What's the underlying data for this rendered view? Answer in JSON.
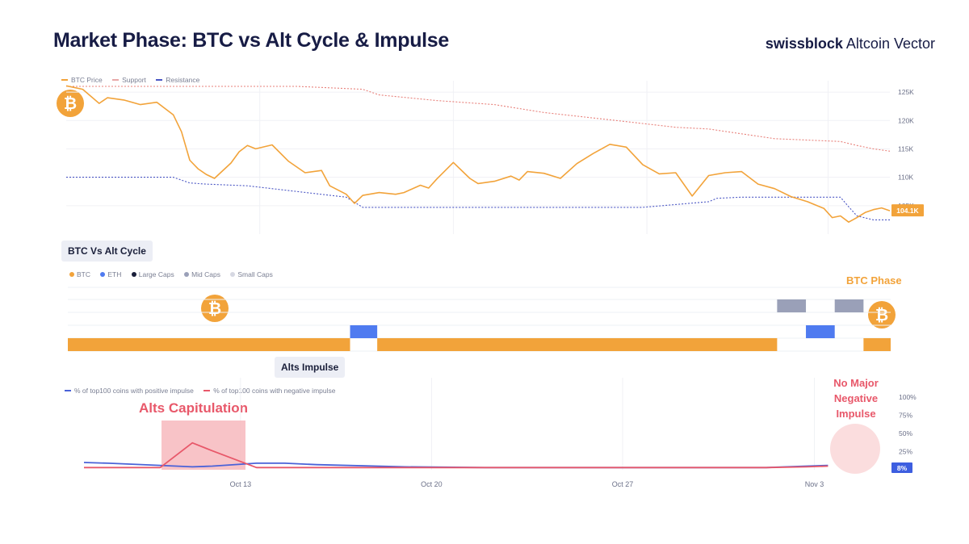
{
  "header": {
    "title": "Market Phase: BTC vs Alt Cycle & Impulse",
    "brand_bold": "swissblock",
    "brand_rest": " Altcoin Vector"
  },
  "colors": {
    "btc": "#f2a33a",
    "eth": "#4f7bf0",
    "large_caps": "#1a1f3a",
    "mid_caps": "#9aa0b8",
    "small_caps": "#d6d8e2",
    "support": "#4a56c4",
    "resistance": "#e8807a",
    "positive": "#4a62d8",
    "negative": "#e8586a",
    "capitulation_fill": "#f7b9bd"
  },
  "chart_data": [
    {
      "type": "line",
      "panel": "price",
      "legend": [
        "BTC Price",
        "Support",
        "Resistance"
      ],
      "y_ticks": [
        "125K",
        "120K",
        "115K",
        "110K",
        "105K"
      ],
      "ylim": [
        100000,
        127000
      ],
      "x_range": [
        0,
        100
      ],
      "current_price_label": "104.1K",
      "series": [
        {
          "name": "BTC Price",
          "x": [
            0,
            2,
            4,
            5,
            7,
            9,
            11,
            13,
            14,
            15,
            16,
            17,
            18,
            20,
            21,
            22,
            23,
            25,
            27,
            29,
            31,
            32,
            34,
            35,
            36,
            38,
            40,
            41,
            43,
            44,
            45,
            47,
            49,
            50,
            52,
            54,
            55,
            56,
            58,
            60,
            62,
            64,
            66,
            68,
            70,
            72,
            74,
            76,
            78,
            80,
            82,
            84,
            86,
            88,
            90,
            92,
            93,
            94,
            95,
            96,
            97,
            98,
            99,
            100
          ],
          "y": [
            126100,
            125500,
            123000,
            124000,
            123600,
            122800,
            123200,
            121000,
            118000,
            113000,
            111500,
            110500,
            109800,
            112500,
            114500,
            115600,
            115000,
            115700,
            112800,
            110800,
            111200,
            108500,
            107000,
            105400,
            106800,
            107300,
            107000,
            107300,
            108600,
            108100,
            109700,
            112600,
            109800,
            108900,
            109300,
            110200,
            109500,
            111000,
            110700,
            109800,
            112400,
            114200,
            115800,
            115300,
            112200,
            110600,
            110800,
            106700,
            110300,
            110800,
            111000,
            108800,
            108000,
            106600,
            105700,
            104500,
            102900,
            103200,
            102100,
            102900,
            103800,
            104300,
            104600,
            104100
          ]
        },
        {
          "name": "Support",
          "x": [
            0,
            5,
            13,
            15,
            17,
            22,
            34,
            36,
            38,
            70,
            78,
            79,
            82,
            94,
            95,
            96,
            98,
            100
          ],
          "y": [
            110000,
            110000,
            110000,
            109000,
            108800,
            108500,
            106500,
            104700,
            104700,
            104700,
            105700,
            106300,
            106500,
            106500,
            104800,
            103200,
            102500,
            102500
          ]
        },
        {
          "name": "Resistance",
          "x": [
            0,
            13,
            28,
            36,
            38,
            45,
            52,
            58,
            68,
            74,
            78,
            86,
            94,
            96,
            98,
            100
          ],
          "y": [
            126000,
            126000,
            126000,
            125500,
            124500,
            123500,
            122800,
            121400,
            119800,
            118800,
            118500,
            116800,
            116300,
            115600,
            115000,
            114600
          ]
        }
      ]
    },
    {
      "type": "bar",
      "panel": "cycle",
      "section_label": "BTC Vs Alt Cycle",
      "legend": [
        "BTC",
        "ETH",
        "Large Caps",
        "Mid Caps",
        "Small Caps"
      ],
      "phase_label": "BTC Phase",
      "segments": [
        {
          "start": 0,
          "end": 34.3,
          "series": "BTC",
          "level": 1
        },
        {
          "start": 34.3,
          "end": 37.6,
          "series": "ETH",
          "level": 2
        },
        {
          "start": 37.6,
          "end": 86.2,
          "series": "BTC",
          "level": 1
        },
        {
          "start": 86.2,
          "end": 89.7,
          "series": "Mid Caps",
          "level": 4
        },
        {
          "start": 89.7,
          "end": 93.2,
          "series": "ETH",
          "level": 2
        },
        {
          "start": 93.2,
          "end": 96.7,
          "series": "Mid Caps",
          "level": 4
        },
        {
          "start": 96.7,
          "end": 100,
          "series": "BTC",
          "level": 1
        }
      ]
    },
    {
      "type": "line",
      "panel": "impulse",
      "section_label": "Alts Impulse",
      "legend": [
        "% of top100 coins with positive impulse",
        "% of top100 coins with negative impulse"
      ],
      "y_ticks": [
        "100%",
        "75%",
        "50%",
        "25%"
      ],
      "ylim": [
        0,
        100
      ],
      "x_ticks": [
        "Oct 13",
        "Oct 20",
        "Oct 27",
        "Nov 3"
      ],
      "current_value_label": "8%",
      "annotations": [
        "Alts Capitulation",
        "No Major Negative Impulse"
      ],
      "series": [
        {
          "name": "% of top100 coins with positive impulse",
          "x": [
            0,
            3,
            9.5,
            13.5,
            16,
            21.5,
            25,
            29,
            40,
            50,
            60,
            70,
            85,
            90,
            92.7
          ],
          "y": [
            10,
            9,
            6,
            4,
            5,
            9,
            9,
            7,
            4,
            3,
            3,
            3,
            3,
            5,
            6
          ]
        },
        {
          "name": "% of top100 coins with negative impulse",
          "x": [
            0,
            3,
            9.5,
            13.5,
            16,
            21.5,
            25,
            29,
            40,
            50,
            60,
            70,
            85,
            90,
            92.7
          ],
          "y": [
            3,
            3,
            3,
            37,
            26,
            3,
            3,
            3,
            3,
            3,
            3,
            3,
            3,
            4,
            5
          ]
        }
      ]
    }
  ]
}
